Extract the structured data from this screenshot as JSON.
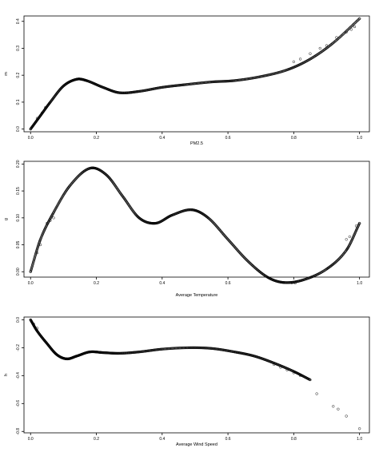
{
  "chart_data": [
    {
      "type": "scatter",
      "xlabel": "PM2.5",
      "ylabel": "m",
      "xticks": [
        "0.0",
        "0.2",
        "0.4",
        "0.6",
        "0.8",
        "1.0"
      ],
      "yticks": [
        "0.0",
        "0.1",
        "0.2",
        "0.3",
        "0.4"
      ],
      "xlim": [
        -0.02,
        1.03
      ],
      "ylim": [
        -0.01,
        0.42
      ],
      "knots": [
        [
          0.0,
          0.0
        ],
        [
          0.03,
          0.05
        ],
        [
          0.06,
          0.1
        ],
        [
          0.1,
          0.16
        ],
        [
          0.14,
          0.185
        ],
        [
          0.17,
          0.18
        ],
        [
          0.22,
          0.155
        ],
        [
          0.27,
          0.135
        ],
        [
          0.33,
          0.14
        ],
        [
          0.4,
          0.155
        ],
        [
          0.47,
          0.165
        ],
        [
          0.55,
          0.175
        ],
        [
          0.62,
          0.18
        ],
        [
          0.7,
          0.195
        ],
        [
          0.78,
          0.22
        ],
        [
          0.85,
          0.26
        ],
        [
          0.92,
          0.32
        ],
        [
          1.0,
          0.41
        ]
      ],
      "points": [
        [
          0.0,
          0.0
        ],
        [
          0.02,
          0.04
        ],
        [
          0.035,
          0.06
        ],
        [
          0.045,
          0.08
        ],
        [
          0.8,
          0.25
        ],
        [
          0.82,
          0.26
        ],
        [
          0.85,
          0.28
        ],
        [
          0.88,
          0.3
        ],
        [
          0.9,
          0.31
        ],
        [
          0.93,
          0.34
        ],
        [
          0.96,
          0.36
        ],
        [
          0.975,
          0.37
        ],
        [
          0.985,
          0.38
        ],
        [
          1.0,
          0.41
        ]
      ]
    },
    {
      "type": "scatter",
      "xlabel": "Average Temperature",
      "ylabel": "g",
      "xticks": [
        "0.0",
        "0.2",
        "0.4",
        "0.6",
        "0.8",
        "1.0"
      ],
      "yticks": [
        "0.00",
        "0.05",
        "0.10",
        "0.15",
        "0.20"
      ],
      "xlim": [
        -0.02,
        1.03
      ],
      "ylim": [
        -0.01,
        0.205
      ],
      "knots": [
        [
          0.0,
          0.0
        ],
        [
          0.03,
          0.06
        ],
        [
          0.07,
          0.11
        ],
        [
          0.12,
          0.16
        ],
        [
          0.18,
          0.192
        ],
        [
          0.23,
          0.18
        ],
        [
          0.28,
          0.14
        ],
        [
          0.33,
          0.1
        ],
        [
          0.38,
          0.09
        ],
        [
          0.43,
          0.105
        ],
        [
          0.49,
          0.115
        ],
        [
          0.54,
          0.1
        ],
        [
          0.6,
          0.06
        ],
        [
          0.66,
          0.02
        ],
        [
          0.72,
          -0.01
        ],
        [
          0.77,
          -0.02
        ],
        [
          0.83,
          -0.015
        ],
        [
          0.9,
          0.005
        ],
        [
          0.96,
          0.04
        ],
        [
          1.0,
          0.09
        ]
      ],
      "points": [
        [
          0.0,
          0.0
        ],
        [
          0.02,
          0.035
        ],
        [
          0.03,
          0.05
        ],
        [
          0.05,
          0.09
        ],
        [
          0.06,
          0.095
        ],
        [
          0.07,
          0.1
        ],
        [
          0.96,
          0.06
        ],
        [
          0.97,
          0.065
        ],
        [
          0.99,
          0.085
        ],
        [
          1.0,
          0.09
        ]
      ]
    },
    {
      "type": "scatter",
      "xlabel": "Average Wind Speed",
      "ylabel": "h",
      "xticks": [
        "0.0",
        "0.2",
        "0.4",
        "0.6",
        "0.8",
        "1.0"
      ],
      "yticks": [
        "0.0",
        "-0.2",
        "-0.4",
        "-0.6",
        "-0.8"
      ],
      "xlim": [
        -0.02,
        1.03
      ],
      "ylim": [
        -0.81,
        0.02
      ],
      "knots": [
        [
          0.0,
          0.0
        ],
        [
          0.02,
          -0.08
        ],
        [
          0.05,
          -0.17
        ],
        [
          0.08,
          -0.25
        ],
        [
          0.11,
          -0.28
        ],
        [
          0.14,
          -0.26
        ],
        [
          0.18,
          -0.23
        ],
        [
          0.22,
          -0.235
        ],
        [
          0.27,
          -0.24
        ],
        [
          0.33,
          -0.23
        ],
        [
          0.4,
          -0.21
        ],
        [
          0.48,
          -0.2
        ],
        [
          0.55,
          -0.205
        ],
        [
          0.62,
          -0.23
        ],
        [
          0.68,
          -0.26
        ],
        [
          0.74,
          -0.31
        ],
        [
          0.8,
          -0.37
        ],
        [
          0.85,
          -0.43
        ]
      ],
      "points": [
        [
          0.0,
          0.0
        ],
        [
          0.01,
          -0.03
        ],
        [
          0.02,
          -0.06
        ],
        [
          0.74,
          -0.32
        ],
        [
          0.76,
          -0.34
        ],
        [
          0.78,
          -0.36
        ],
        [
          0.8,
          -0.38
        ],
        [
          0.82,
          -0.4
        ],
        [
          0.87,
          -0.53
        ],
        [
          0.92,
          -0.62
        ],
        [
          0.935,
          -0.64
        ],
        [
          0.96,
          -0.69
        ],
        [
          1.0,
          -0.78
        ]
      ]
    }
  ]
}
